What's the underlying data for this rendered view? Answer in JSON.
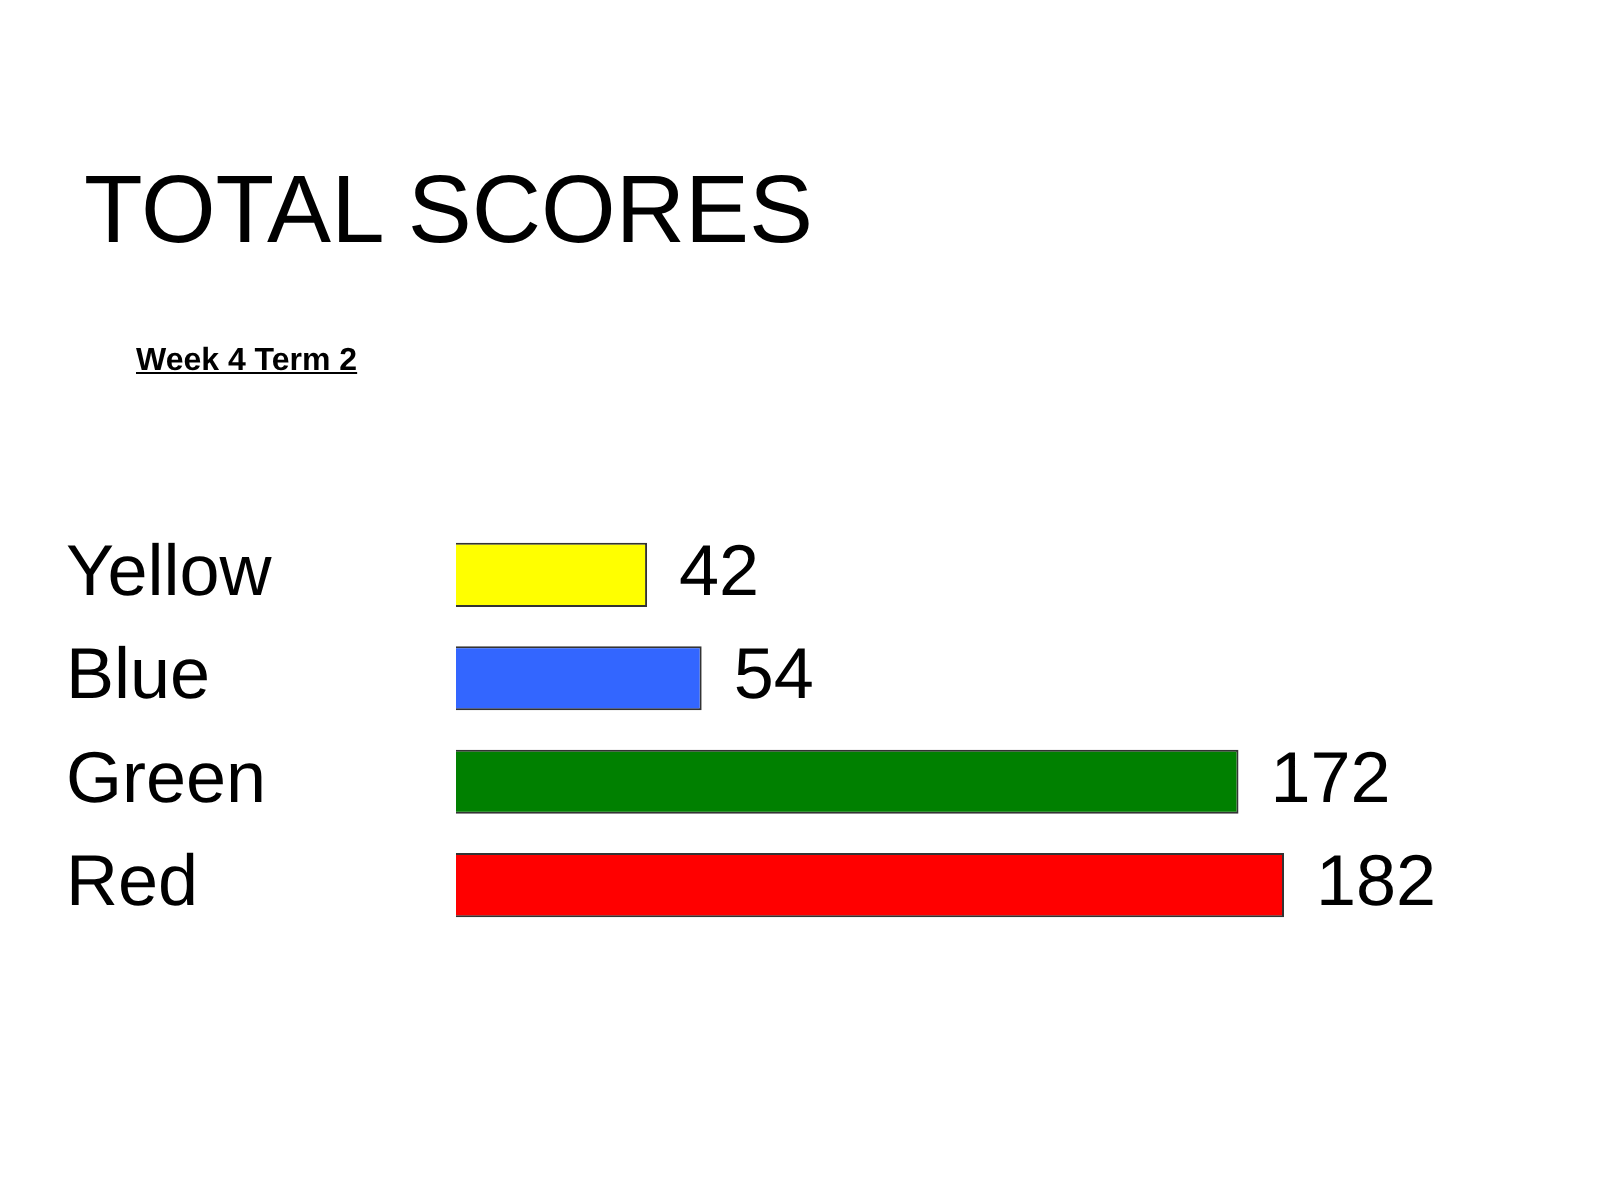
{
  "chart_data": {
    "type": "bar",
    "orientation": "horizontal",
    "title": "TOTAL SCORES",
    "subtitle": "Week 4 Term 2",
    "categories": [
      "Yellow",
      "Blue",
      "Green",
      "Red"
    ],
    "values": [
      42,
      54,
      172,
      182
    ],
    "colors": [
      "#ffff00",
      "#3366ff",
      "#008000",
      "#ff0000"
    ],
    "data_labels": true,
    "legend": false
  }
}
